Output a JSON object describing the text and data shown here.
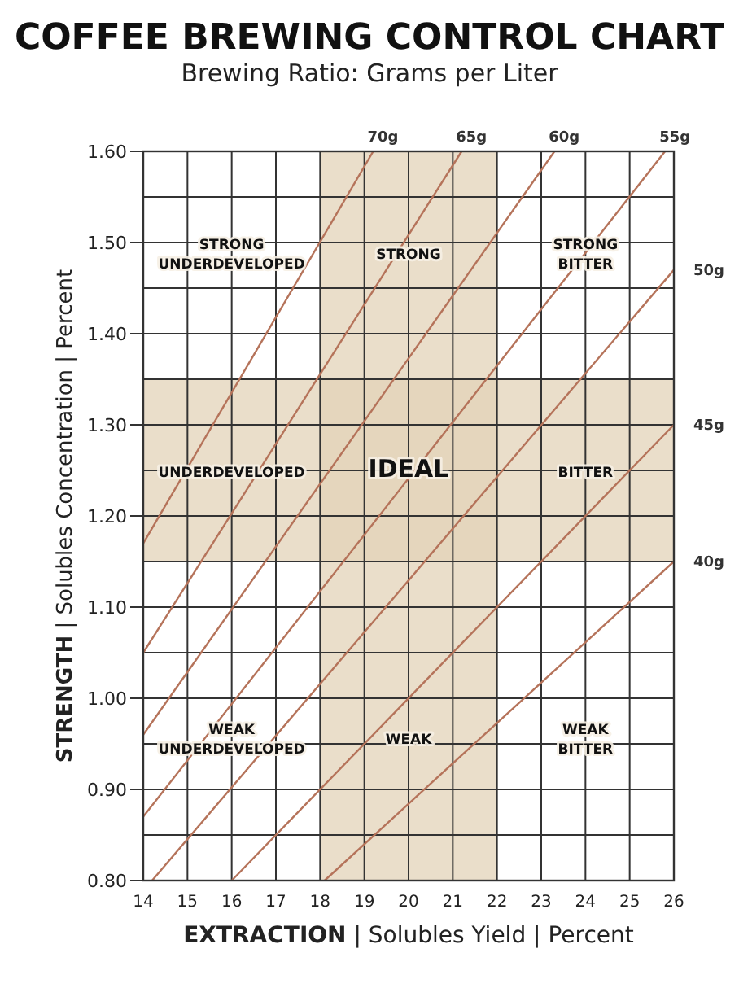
{
  "chart_data": {
    "type": "line",
    "title": "COFFEE BREWING CONTROL CHART",
    "subtitle": "Brewing Ratio: Grams per Liter",
    "xlabel": "EXTRACTION | Solubles Yield | Percent",
    "ylabel": "STRENGTH | Solubles Concentration | Percent",
    "xlim": [
      14,
      26
    ],
    "ylim": [
      0.8,
      1.6
    ],
    "xticks": [
      14,
      15,
      16,
      17,
      18,
      19,
      20,
      21,
      22,
      23,
      24,
      25,
      26
    ],
    "yticks": [
      {
        "value": 0.8,
        "label": "0.80"
      },
      {
        "value": 0.85,
        "label": null
      },
      {
        "value": 0.9,
        "label": "0.90"
      },
      {
        "value": 0.95,
        "label": null
      },
      {
        "value": 1.0,
        "label": "1.00"
      },
      {
        "value": 1.05,
        "label": null
      },
      {
        "value": 1.1,
        "label": "1.10"
      },
      {
        "value": 1.15,
        "label": null
      },
      {
        "value": 1.2,
        "label": "1.20"
      },
      {
        "value": 1.25,
        "label": null
      },
      {
        "value": 1.3,
        "label": "1.30"
      },
      {
        "value": 1.35,
        "label": null
      },
      {
        "value": 1.4,
        "label": "1.40"
      },
      {
        "value": 1.45,
        "label": null
      },
      {
        "value": 1.5,
        "label": "1.50"
      },
      {
        "value": 1.55,
        "label": null
      },
      {
        "value": 1.6,
        "label": "1.60"
      }
    ],
    "grid": true,
    "marker": "none",
    "line_style": "solid",
    "bands": [
      {
        "axis": "x",
        "from": 18,
        "to": 22,
        "color": "#e3d3b8"
      },
      {
        "axis": "y",
        "from": 1.15,
        "to": 1.35,
        "color": "#e3d3b8"
      }
    ],
    "series": [
      {
        "name": "70g",
        "color": "#b5735a",
        "x": [
          14,
          19.2
        ],
        "values": [
          1.17,
          1.6
        ]
      },
      {
        "name": "65g",
        "color": "#b5735a",
        "x": [
          14,
          21.2
        ],
        "values": [
          1.05,
          1.6
        ]
      },
      {
        "name": "60g",
        "color": "#b5735a",
        "x": [
          14,
          23.3
        ],
        "values": [
          0.96,
          1.6
        ]
      },
      {
        "name": "55g",
        "color": "#b5735a",
        "x": [
          14,
          25.8
        ],
        "values": [
          0.87,
          1.6
        ]
      },
      {
        "name": "50g",
        "color": "#b5735a",
        "x": [
          14.2,
          26
        ],
        "values": [
          0.8,
          1.47
        ]
      },
      {
        "name": "45g",
        "color": "#b5735a",
        "x": [
          16,
          26
        ],
        "values": [
          0.8,
          1.3
        ]
      },
      {
        "name": "40g",
        "color": "#b5735a",
        "x": [
          18.1,
          26
        ],
        "values": [
          0.8,
          1.15
        ]
      }
    ],
    "annotations": [
      "STRONG\nUNDERDEVELOPED",
      "STRONG",
      "STRONG\nBITTER",
      "UNDERDEVELOPED",
      "IDEAL",
      "BITTER",
      "WEAK\nUNDERDEVELOPED",
      "WEAK",
      "WEAK\nBITTER"
    ]
  }
}
